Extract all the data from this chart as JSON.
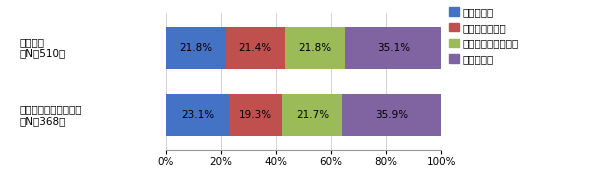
{
  "categories": [
    "自社単独\n（N］510）",
    "自社企業グループ横断\n（N］368）"
  ],
  "series": [
    {
      "label": "課題である",
      "values": [
        21.8,
        23.1
      ],
      "color": "#4472C4"
    },
    {
      "label": "やや課題である",
      "values": [
        21.4,
        19.3
      ],
      "color": "#C0504D"
    },
    {
      "label": "それほど課題でない",
      "values": [
        21.8,
        21.7
      ],
      "color": "#9BBB59"
    },
    {
      "label": "課題でない",
      "values": [
        35.1,
        35.9
      ],
      "color": "#8064A2"
    }
  ],
  "xlim": [
    0,
    100
  ],
  "xticks": [
    0,
    20,
    40,
    60,
    80,
    100
  ],
  "xticklabels": [
    "0%",
    "20%",
    "40%",
    "60%",
    "80%",
    "100%"
  ],
  "bar_height": 0.62,
  "background_color": "#FFFFFF",
  "text_color": "#000000",
  "bar_text_color": "#000000",
  "fontsize": 7.5,
  "legend_fontsize": 7.5,
  "tick_fontsize": 7.5
}
